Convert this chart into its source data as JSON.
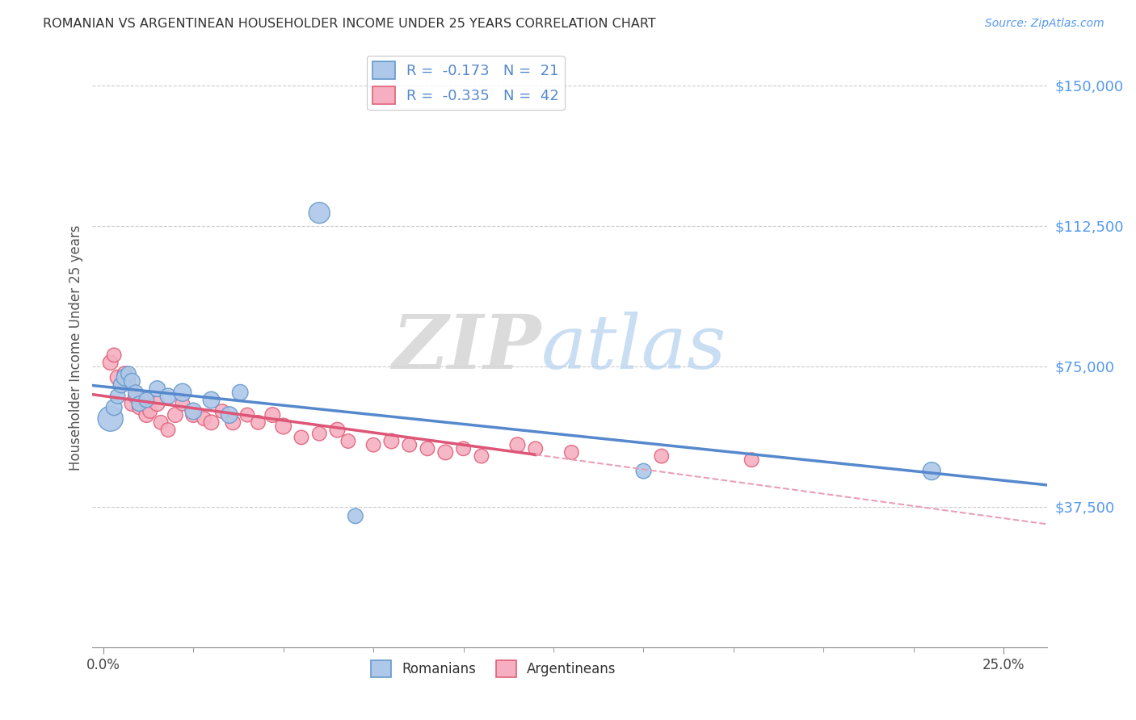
{
  "title": "ROMANIAN VS ARGENTINEAN HOUSEHOLDER INCOME UNDER 25 YEARS CORRELATION CHART",
  "source": "Source: ZipAtlas.com",
  "ylabel": "Householder Income Under 25 years",
  "ytick_labels": [
    "$37,500",
    "$75,000",
    "$112,500",
    "$150,000"
  ],
  "ytick_values": [
    37500,
    75000,
    112500,
    150000
  ],
  "ymin": 0,
  "ymax": 160000,
  "xmin": -0.003,
  "xmax": 0.262,
  "xtick_positions": [
    0.0,
    0.25
  ],
  "xtick_labels": [
    "0.0%",
    "25.0%"
  ],
  "watermark_zip": "ZIP",
  "watermark_atlas": "atlas",
  "legend_r1": "R =  -0.173",
  "legend_n1": "N =  21",
  "legend_r2": "R =  -0.335",
  "legend_n2": "N =  42",
  "romanian_face_color": "#adc8e8",
  "romanian_edge_color": "#6699cc",
  "argentinean_face_color": "#f5afc0",
  "argentinean_edge_color": "#e0607a",
  "trend_romanian_color": "#5588cc",
  "trend_argentinean_solid_color": "#dd5577",
  "trend_argentinean_dashed_color": "#e8a0b5",
  "background_color": "#ffffff",
  "grid_color": "#cccccc",
  "title_color": "#333333",
  "axis_label_color": "#555555",
  "ytick_color": "#5599ee",
  "source_color": "#5599ee",
  "romanians_x": [
    0.002,
    0.003,
    0.004,
    0.005,
    0.006,
    0.007,
    0.008,
    0.009,
    0.01,
    0.012,
    0.015,
    0.018,
    0.022,
    0.025,
    0.03,
    0.035,
    0.038,
    0.06,
    0.07,
    0.15,
    0.23
  ],
  "romanians_y": [
    61000,
    64000,
    67000,
    70000,
    72000,
    73000,
    71000,
    68000,
    65000,
    66000,
    69000,
    67000,
    68000,
    63000,
    66000,
    62000,
    68000,
    116000,
    35000,
    47000,
    47000
  ],
  "romanians_size": [
    500,
    200,
    180,
    200,
    220,
    180,
    200,
    180,
    180,
    180,
    200,
    200,
    250,
    220,
    220,
    220,
    200,
    350,
    180,
    180,
    250
  ],
  "argentineans_x": [
    0.002,
    0.003,
    0.004,
    0.005,
    0.006,
    0.007,
    0.008,
    0.009,
    0.01,
    0.011,
    0.012,
    0.013,
    0.015,
    0.016,
    0.018,
    0.02,
    0.022,
    0.025,
    0.028,
    0.03,
    0.033,
    0.036,
    0.04,
    0.043,
    0.047,
    0.05,
    0.055,
    0.06,
    0.065,
    0.068,
    0.075,
    0.08,
    0.085,
    0.09,
    0.095,
    0.1,
    0.105,
    0.115,
    0.12,
    0.13,
    0.155,
    0.18
  ],
  "argentineans_y": [
    76000,
    78000,
    72000,
    70000,
    73000,
    71000,
    65000,
    67000,
    64000,
    66000,
    62000,
    63000,
    65000,
    60000,
    58000,
    62000,
    65000,
    62000,
    61000,
    60000,
    63000,
    60000,
    62000,
    60000,
    62000,
    59000,
    56000,
    57000,
    58000,
    55000,
    54000,
    55000,
    54000,
    53000,
    52000,
    53000,
    51000,
    54000,
    53000,
    52000,
    51000,
    50000
  ],
  "argentineans_size": [
    180,
    160,
    180,
    160,
    180,
    160,
    180,
    180,
    160,
    160,
    180,
    160,
    180,
    160,
    160,
    180,
    160,
    180,
    160,
    180,
    160,
    180,
    160,
    160,
    180,
    200,
    160,
    160,
    180,
    160,
    160,
    180,
    160,
    160,
    180,
    160,
    160,
    180,
    160,
    160,
    160,
    160
  ],
  "arg_trend_solid_end_x": 0.12,
  "arg_trend_dash_start_x": 0.12
}
